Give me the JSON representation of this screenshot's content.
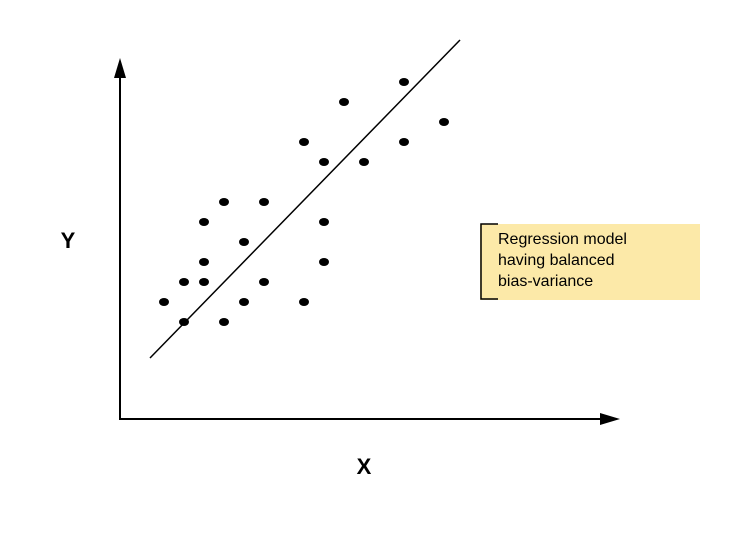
{
  "axes": {
    "x_label": "X",
    "y_label": "Y"
  },
  "annotation": {
    "lines": [
      "Regression model",
      "having balanced",
      "bias-variance"
    ]
  }
}
